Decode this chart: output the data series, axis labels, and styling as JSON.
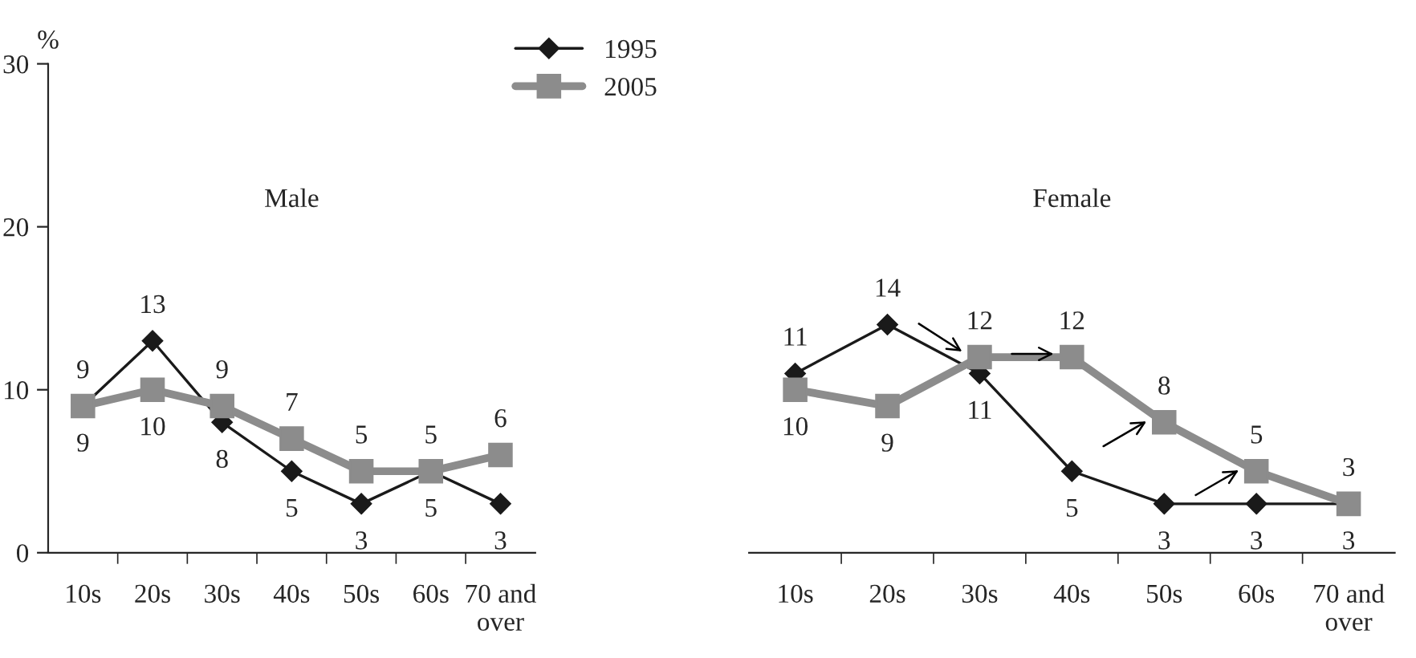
{
  "chart_data": [
    {
      "type": "line",
      "title": "Male",
      "ylabel": "%",
      "categories": [
        "10s",
        "20s",
        "30s",
        "40s",
        "50s",
        "60s",
        "70 and\nover"
      ],
      "ylim": [
        0,
        30
      ],
      "yticks": [
        0,
        10,
        20,
        30
      ],
      "data_labels": true,
      "grid": false,
      "legend": "top right",
      "series": [
        {
          "name": "1995",
          "color": "#1a1a1a",
          "marker": "diamond",
          "values": [
            9,
            13,
            8,
            5,
            3,
            5,
            3
          ]
        },
        {
          "name": "2005",
          "color": "#8c8c8c",
          "marker": "square",
          "values": [
            9,
            10,
            9,
            7,
            5,
            5,
            6
          ]
        }
      ]
    },
    {
      "type": "line",
      "title": "Female",
      "categories": [
        "10s",
        "20s",
        "30s",
        "40s",
        "50s",
        "60s",
        "70 and\nover"
      ],
      "ylim": [
        0,
        30
      ],
      "yticks": [
        0,
        10,
        20,
        30
      ],
      "tick_labels": "x",
      "data_labels": true,
      "grid": false,
      "legend": false,
      "series": [
        {
          "name": "1995",
          "color": "#1a1a1a",
          "marker": "diamond",
          "values": [
            11,
            14,
            11,
            5,
            3,
            3,
            3
          ]
        },
        {
          "name": "2005",
          "color": "#8c8c8c",
          "marker": "square",
          "values": [
            10,
            9,
            12,
            12,
            8,
            5,
            3
          ]
        }
      ]
    }
  ]
}
